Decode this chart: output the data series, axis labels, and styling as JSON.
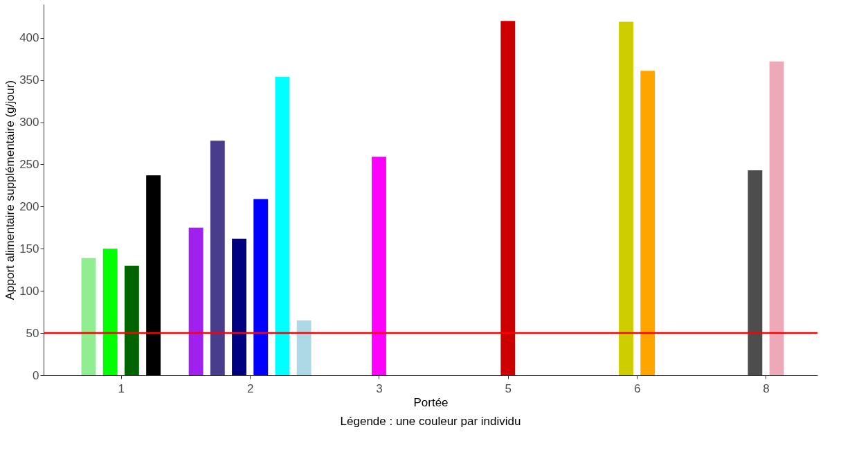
{
  "chart_data": {
    "type": "bar",
    "xlabel": "Portée",
    "ylabel": "Apport alimentaire supplémentaire (g/jour)",
    "categories": [
      "1",
      "2",
      "3",
      "5",
      "6",
      "8"
    ],
    "series": [
      {
        "color": "#90ee90",
        "values": [
          139,
          null,
          null,
          null,
          null,
          null
        ]
      },
      {
        "color": "#00ff00",
        "values": [
          150,
          null,
          null,
          null,
          null,
          null
        ]
      },
      {
        "color": "#006400",
        "values": [
          130,
          null,
          null,
          null,
          null,
          null
        ]
      },
      {
        "color": "#000000",
        "values": [
          237,
          null,
          null,
          null,
          null,
          null
        ]
      },
      {
        "color": "#a020f0",
        "values": [
          null,
          175,
          null,
          null,
          null,
          null
        ]
      },
      {
        "color": "#483d8b",
        "values": [
          null,
          278,
          null,
          null,
          null,
          null
        ]
      },
      {
        "color": "#000080",
        "values": [
          null,
          162,
          null,
          null,
          null,
          null
        ]
      },
      {
        "color": "#0000ff",
        "values": [
          null,
          209,
          null,
          null,
          null,
          null
        ]
      },
      {
        "color": "#00ffff",
        "values": [
          null,
          354,
          null,
          null,
          null,
          null
        ]
      },
      {
        "color": "#add8e6",
        "values": [
          null,
          65,
          null,
          null,
          null,
          null
        ]
      },
      {
        "color": "#ff00ff",
        "values": [
          null,
          null,
          259,
          null,
          null,
          null
        ]
      },
      {
        "color": "#cd0000",
        "values": [
          null,
          null,
          null,
          420,
          null,
          null
        ]
      },
      {
        "color": "#cdcd00",
        "values": [
          null,
          null,
          null,
          null,
          419,
          null
        ]
      },
      {
        "color": "#ffa500",
        "values": [
          null,
          null,
          null,
          null,
          361,
          null
        ]
      },
      {
        "color": "#4d4d4d",
        "values": [
          null,
          null,
          null,
          null,
          null,
          243
        ]
      },
      {
        "color": "#eea9b8",
        "values": [
          null,
          null,
          null,
          null,
          null,
          372
        ]
      }
    ],
    "ylim": [
      0,
      440
    ],
    "yticks": [
      0,
      50,
      100,
      150,
      200,
      250,
      300,
      350,
      400
    ],
    "ref_lines": [
      {
        "axis": "y",
        "value": 50,
        "color": "#ff0000"
      }
    ],
    "annotations": [
      "Légende : une couleur par individu"
    ],
    "grid": false,
    "legend": false
  }
}
